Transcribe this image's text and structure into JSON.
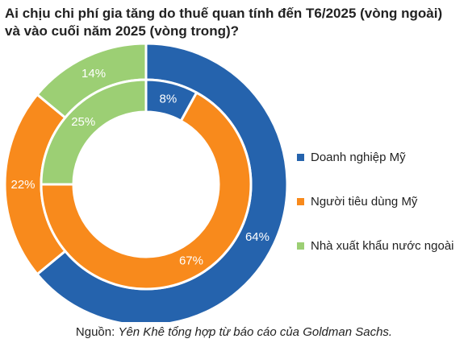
{
  "chart_data": {
    "type": "donut",
    "title": "Ai chịu chi phí gia tăng do thuế quan tính đến T6/2025 (vòng ngoài)\nvà vào cuối năm 2025 (vòng trong)?",
    "categories": [
      "Doanh nghiệp Mỹ",
      "Người tiêu dùng Mỹ",
      "Nhà xuất khẩu nước ngoài"
    ],
    "colors": [
      "#2563ad",
      "#f88a1c",
      "#9ccf74"
    ],
    "series": [
      {
        "ring": "outer",
        "values": [
          64,
          22,
          14
        ],
        "labels": [
          "64%",
          "22%",
          "14%"
        ]
      },
      {
        "ring": "inner",
        "values": [
          8,
          67,
          25
        ],
        "labels": [
          "8%",
          "67%",
          "25%"
        ]
      }
    ],
    "legend_position": "right"
  },
  "source": {
    "prefix": "Nguồn: ",
    "text": "Yên Khê tổng hợp từ báo cáo của Goldman Sachs."
  }
}
